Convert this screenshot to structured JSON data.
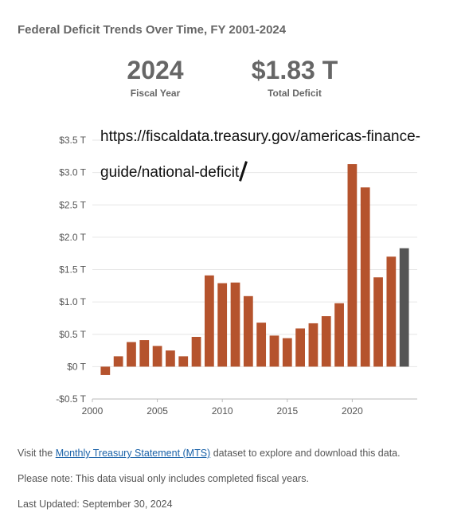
{
  "title": "Federal Deficit Trends Over Time, FY 2001-2024",
  "stats": {
    "year_value": "2024",
    "year_label": "Fiscal Year",
    "deficit_value": "$1.83 T",
    "deficit_label": "Total Deficit"
  },
  "url_overlay": {
    "line1": "https://fiscaldata.treasury.gov/americas-finance-",
    "line2": "guide/national-deficit"
  },
  "chart_data": {
    "type": "bar",
    "x": [
      2001,
      2002,
      2003,
      2004,
      2005,
      2006,
      2007,
      2008,
      2009,
      2010,
      2011,
      2012,
      2013,
      2014,
      2015,
      2016,
      2017,
      2018,
      2019,
      2020,
      2021,
      2022,
      2023,
      2024
    ],
    "values": [
      -0.13,
      0.16,
      0.38,
      0.41,
      0.32,
      0.25,
      0.16,
      0.46,
      1.41,
      1.29,
      1.3,
      1.09,
      0.68,
      0.48,
      0.44,
      0.59,
      0.67,
      0.78,
      0.98,
      3.13,
      2.77,
      1.38,
      1.7,
      1.83
    ],
    "units": "Trillions of dollars",
    "ylim": [
      -0.5,
      3.5
    ],
    "yticks": [
      -0.5,
      0,
      0.5,
      1.0,
      1.5,
      2.0,
      2.5,
      3.0,
      3.5
    ],
    "ytick_labels": [
      "-$0.5 T",
      "$0 T",
      "$0.5 T",
      "$1.0 T",
      "$1.5 T",
      "$2.0 T",
      "$2.5 T",
      "$3.0 T",
      "$3.5 T"
    ],
    "xlim": [
      2000,
      2025
    ],
    "xticks": [
      2000,
      2005,
      2010,
      2015,
      2020
    ],
    "xtick_labels": [
      "2000",
      "2005",
      "2010",
      "2015",
      "2020"
    ],
    "highlight_year": 2024,
    "colors": {
      "bar": "#b5532d",
      "highlight": "#555555",
      "grid": "#e6e6e6",
      "axis": "#bbbbbb"
    },
    "grid": true
  },
  "footer": {
    "line1_prefix": "Visit the ",
    "line1_link": "Monthly Treasury Statement (MTS)",
    "line1_suffix": " dataset to explore and download this data.",
    "line2": "Please note: This data visual only includes completed fiscal years.",
    "line3": "Last Updated: September 30, 2024"
  }
}
